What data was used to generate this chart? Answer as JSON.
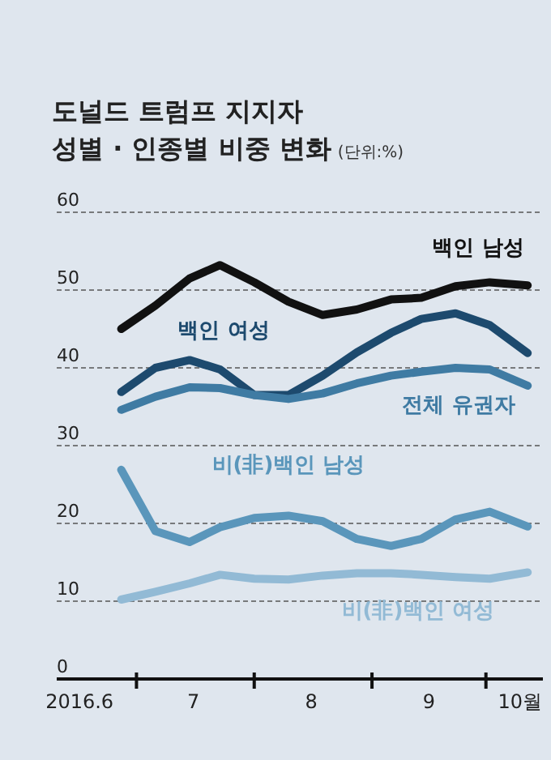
{
  "chart_data": {
    "type": "line",
    "title": "도널드 트럼프 지지자 성별 · 인종별 비중 변화",
    "subtitle": "(단위:%)",
    "x": [
      "2016-06-27",
      "2016-07-06",
      "2016-07-15",
      "2016-07-23",
      "2016-08-01",
      "2016-08-10",
      "2016-08-19",
      "2016-08-28",
      "2016-09-06",
      "2016-09-14",
      "2016-09-23",
      "2016-10-02",
      "2016-10-12"
    ],
    "xlim": [
      "2016-06-10",
      "2016-10-16"
    ],
    "xticks": [
      {
        "value": "2016-06-16",
        "label": "2016.6"
      },
      {
        "value": "2016-07-01",
        "label": null
      },
      {
        "value": "2016-07-16",
        "label": "7"
      },
      {
        "value": "2016-08-01",
        "label": null
      },
      {
        "value": "2016-08-16",
        "label": "8"
      },
      {
        "value": "2016-09-01",
        "label": null
      },
      {
        "value": "2016-09-16",
        "label": "9"
      },
      {
        "value": "2016-10-01",
        "label": null
      },
      {
        "value": "2016-10-10",
        "label": "10월"
      }
    ],
    "ylim": [
      0,
      60
    ],
    "yticks": [
      0,
      10,
      20,
      30,
      40,
      50,
      60
    ],
    "grid": "y",
    "legend": false,
    "series": [
      {
        "name": "백인 남성",
        "color": "#111111",
        "values": [
          45,
          48,
          51.5,
          53.2,
          51,
          48.5,
          46.8,
          47.5,
          48.8,
          49,
          50.5,
          51,
          50.6
        ]
      },
      {
        "name": "백인 여성",
        "color": "#1d4a6e",
        "values": [
          36.9,
          40,
          41,
          39.8,
          36.5,
          36.5,
          39,
          42,
          44.5,
          46.3,
          47,
          45.5,
          41.9
        ]
      },
      {
        "name": "전체 유권자",
        "color": "#3f7ba3",
        "values": [
          34.6,
          36.3,
          37.5,
          37.4,
          36.5,
          36,
          36.7,
          38,
          39,
          39.5,
          40,
          39.8,
          37.7
        ]
      },
      {
        "name": "비(非)백인 남성",
        "color": "#5a96bb",
        "values": [
          26.9,
          19,
          17.6,
          19.5,
          20.7,
          21,
          20.3,
          18,
          17.1,
          18,
          20.5,
          21.5,
          19.6
        ]
      },
      {
        "name": "비(非)백인 여성",
        "color": "#92bad5",
        "values": [
          10.2,
          11.2,
          12.3,
          13.4,
          12.9,
          12.8,
          13.3,
          13.6,
          13.6,
          13.4,
          13.1,
          12.9,
          13.7
        ]
      }
    ]
  }
}
